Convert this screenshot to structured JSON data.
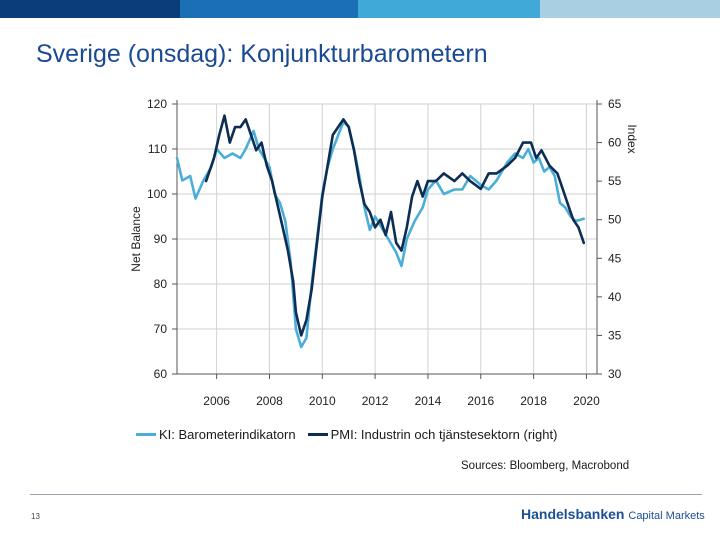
{
  "slide": {
    "title": "Sverige (onsdag): Konjunkturbarometern",
    "page_number": "13",
    "brand_name": "Handelsbanken",
    "brand_sub": "Capital Markets",
    "top_bar_colors": [
      "#0a3d7a",
      "#1b6fb5",
      "#41a9d8",
      "#a9cfe2"
    ]
  },
  "chart_data": {
    "type": "line",
    "title": "",
    "xlabel": "",
    "ylabel_left": "Net Balance",
    "ylabel_right": "Index",
    "left_ylim": [
      60,
      120
    ],
    "right_ylim": [
      30,
      65
    ],
    "left_ticks": [
      "120",
      "110",
      "100",
      "90",
      "80",
      "70",
      "60"
    ],
    "right_ticks": [
      "65",
      "60",
      "55",
      "50",
      "45",
      "40",
      "35",
      "30"
    ],
    "x_range": [
      2004.5,
      2020.4
    ],
    "x_ticks": [
      "2006",
      "2008",
      "2010",
      "2012",
      "2014",
      "2016",
      "2018",
      "2020"
    ],
    "grid": true,
    "legend_position": "bottom",
    "source": "Sources: Bloomberg, Macrobond",
    "series": [
      {
        "name": "KI: Barometerindikatorn",
        "axis": "left",
        "color": "#4aaed9",
        "x": [
          2004.5,
          2004.7,
          2005.0,
          2005.2,
          2005.5,
          2005.8,
          2006.0,
          2006.3,
          2006.6,
          2006.9,
          2007.1,
          2007.4,
          2007.6,
          2007.8,
          2008.0,
          2008.2,
          2008.4,
          2008.6,
          2008.8,
          2009.0,
          2009.2,
          2009.4,
          2009.6,
          2009.8,
          2010.0,
          2010.2,
          2010.4,
          2010.6,
          2010.8,
          2011.0,
          2011.2,
          2011.4,
          2011.6,
          2011.8,
          2012.0,
          2012.2,
          2012.5,
          2012.8,
          2013.0,
          2013.2,
          2013.5,
          2013.8,
          2014.0,
          2014.3,
          2014.6,
          2015.0,
          2015.3,
          2015.6,
          2016.0,
          2016.3,
          2016.6,
          2017.0,
          2017.3,
          2017.6,
          2017.8,
          2018.0,
          2018.2,
          2018.4,
          2018.6,
          2018.8,
          2019.0,
          2019.2,
          2019.4,
          2019.6,
          2019.9
        ],
        "values": [
          108,
          103,
          104,
          99,
          103,
          106,
          110,
          108,
          109,
          108,
          110,
          114,
          110,
          108,
          106,
          100,
          98,
          94,
          85,
          70,
          66,
          68,
          80,
          90,
          100,
          106,
          110,
          113,
          116,
          115,
          110,
          104,
          97,
          92,
          95,
          93,
          90,
          87,
          84,
          90,
          94,
          97,
          101,
          103,
          100,
          101,
          101,
          104,
          102,
          101,
          103,
          107,
          109,
          108,
          110,
          107,
          108,
          105,
          106,
          104,
          98,
          97,
          95,
          94,
          94.5
        ]
      },
      {
        "name": "PMI: Industrin och tjänstesektorn (right)",
        "axis": "right",
        "color": "#0d2d52",
        "x": [
          2005.6,
          2005.9,
          2006.1,
          2006.3,
          2006.5,
          2006.7,
          2006.9,
          2007.1,
          2007.3,
          2007.5,
          2007.7,
          2007.9,
          2008.1,
          2008.3,
          2008.5,
          2008.7,
          2008.9,
          2009.0,
          2009.2,
          2009.4,
          2009.6,
          2009.8,
          2010.0,
          2010.2,
          2010.4,
          2010.6,
          2010.8,
          2011.0,
          2011.2,
          2011.4,
          2011.6,
          2011.8,
          2012.0,
          2012.2,
          2012.4,
          2012.6,
          2012.8,
          2013.0,
          2013.2,
          2013.4,
          2013.6,
          2013.8,
          2014.0,
          2014.3,
          2014.6,
          2015.0,
          2015.3,
          2015.6,
          2016.0,
          2016.3,
          2016.6,
          2017.0,
          2017.3,
          2017.6,
          2017.9,
          2018.1,
          2018.3,
          2018.6,
          2018.9,
          2019.1,
          2019.3,
          2019.5,
          2019.7,
          2019.9
        ],
        "values": [
          55,
          58,
          61,
          63.5,
          60,
          62,
          62,
          63,
          61,
          59,
          60,
          57,
          55,
          52,
          49,
          46,
          42,
          38,
          35,
          37,
          41,
          47,
          53,
          57,
          61,
          62,
          63,
          62,
          59,
          55,
          52,
          51,
          49,
          50,
          48,
          51,
          47,
          46,
          49,
          53,
          55,
          53,
          55,
          55,
          56,
          55,
          56,
          55,
          54,
          56,
          56,
          57,
          58,
          60,
          60,
          58,
          59,
          57,
          56,
          54,
          52,
          50,
          49,
          47
        ]
      }
    ]
  }
}
